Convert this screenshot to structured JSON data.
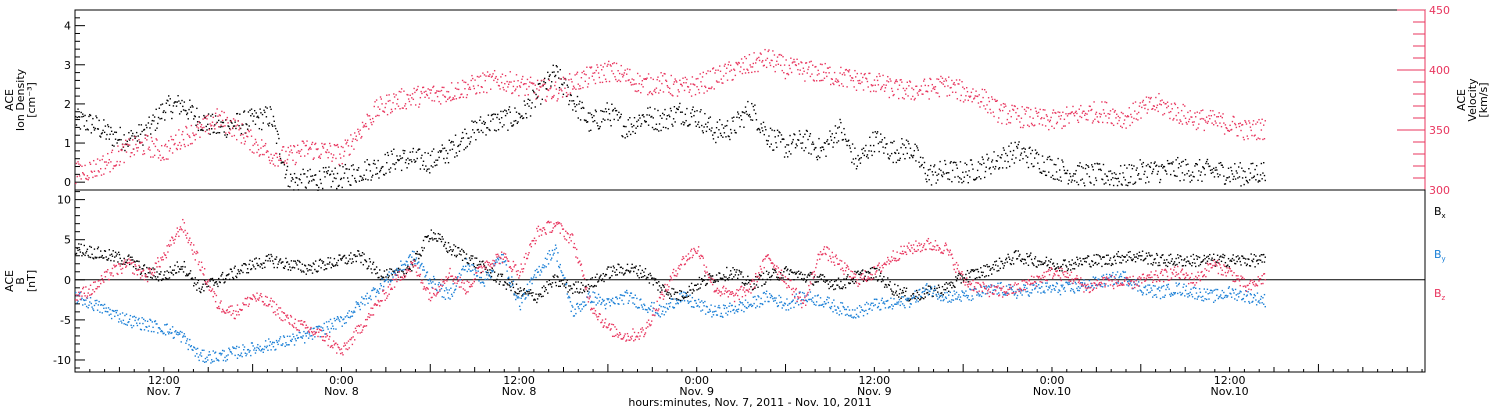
{
  "chart_data": [
    {
      "type": "scatter",
      "panel": "top",
      "ylabel_left": [
        "ACE",
        "Ion Density",
        "[cm⁻³]"
      ],
      "ylabel_right": [
        "ACE",
        "Velocity",
        "[km/s]"
      ],
      "ylim_left": [
        -0.2,
        4.4
      ],
      "ylim_right": [
        300,
        450
      ],
      "yticks_left": [
        "0",
        "1",
        "2",
        "3",
        "4"
      ],
      "yticks_right": [
        "300",
        "350",
        "400",
        "450"
      ],
      "grid": false,
      "colors": {
        "density": "#000000",
        "velocity": "#e8355e"
      },
      "series": [
        {
          "name": "",
          "axis": "left",
          "color": "#000000",
          "x": [
            7.0,
            7.05,
            7.1,
            7.15,
            7.2,
            7.25,
            7.3,
            7.35,
            7.4,
            7.45,
            7.5,
            7.55,
            7.6,
            7.65,
            7.7,
            7.75,
            7.8,
            7.85,
            7.9,
            7.95,
            8.0,
            8.05,
            8.1,
            8.15,
            8.2,
            8.25,
            8.3,
            8.35,
            8.4,
            8.45,
            8.5,
            8.55,
            8.6,
            8.65,
            8.7,
            8.75,
            8.8,
            8.85,
            8.9,
            8.95,
            9.0,
            9.05,
            9.1,
            9.15,
            9.2,
            9.25,
            9.3,
            9.35,
            9.4,
            9.45,
            9.5,
            9.55,
            9.6,
            9.65,
            9.7,
            9.75,
            9.8,
            9.85,
            9.9,
            9.95,
            10.0,
            10.05,
            10.1,
            10.15,
            10.2,
            10.25,
            10.3,
            10.35
          ],
          "values": [
            1.6,
            1.5,
            1.2,
            1.1,
            1.3,
            1.9,
            2.0,
            1.6,
            1.4,
            1.5,
            1.6,
            1.7,
            0.05,
            0.05,
            0.1,
            0.15,
            0.3,
            0.4,
            0.6,
            0.6,
            0.55,
            0.8,
            1.2,
            1.5,
            1.6,
            1.7,
            2.2,
            2.8,
            2.1,
            1.5,
            1.8,
            1.4,
            1.7,
            1.6,
            1.8,
            1.7,
            1.3,
            1.4,
            1.9,
            1.2,
            0.9,
            1.1,
            0.8,
            1.4,
            0.5,
            1.1,
            0.8,
            0.9,
            0.2,
            0.3,
            0.25,
            0.4,
            0.6,
            0.8,
            0.6,
            0.4,
            0.25,
            0.2,
            0.2,
            0.15,
            0.3,
            0.3,
            0.35,
            0.3,
            0.3,
            0.25,
            0.2,
            0.3
          ]
        },
        {
          "name": "",
          "axis": "right",
          "color": "#e8355e",
          "x": [
            7.0,
            7.05,
            7.1,
            7.15,
            7.2,
            7.25,
            7.3,
            7.35,
            7.4,
            7.45,
            7.5,
            7.55,
            7.6,
            7.65,
            7.7,
            7.75,
            7.8,
            7.85,
            7.9,
            7.95,
            8.0,
            8.05,
            8.1,
            8.15,
            8.2,
            8.25,
            8.3,
            8.35,
            8.4,
            8.45,
            8.5,
            8.55,
            8.6,
            8.65,
            8.7,
            8.75,
            8.8,
            8.85,
            8.9,
            8.95,
            9.0,
            9.05,
            9.1,
            9.15,
            9.2,
            9.25,
            9.3,
            9.35,
            9.4,
            9.45,
            9.5,
            9.55,
            9.6,
            9.65,
            9.7,
            9.75,
            9.8,
            9.85,
            9.9,
            9.95,
            10.0,
            10.05,
            10.1,
            10.15,
            10.2,
            10.25,
            10.3,
            10.35
          ],
          "values": [
            315,
            318,
            325,
            335,
            338,
            332,
            345,
            350,
            360,
            352,
            340,
            330,
            328,
            335,
            333,
            330,
            350,
            368,
            375,
            378,
            380,
            382,
            386,
            390,
            392,
            388,
            384,
            383,
            390,
            395,
            400,
            395,
            388,
            390,
            385,
            388,
            394,
            400,
            405,
            410,
            402,
            400,
            398,
            395,
            392,
            390,
            385,
            383,
            385,
            388,
            382,
            378,
            365,
            362,
            360,
            358,
            362,
            365,
            366,
            360,
            368,
            372,
            365,
            360,
            358,
            355,
            350,
            352
          ]
        }
      ]
    },
    {
      "type": "scatter",
      "panel": "bottom",
      "ylabel_left": [
        "ACE",
        "B",
        "[nT]"
      ],
      "ylim": [
        -11.5,
        11.2
      ],
      "yticks": [
        "-10",
        "-5",
        "0",
        "5",
        "10"
      ],
      "grid": false,
      "legend": [
        "Bx",
        "By",
        "Bz"
      ],
      "legend_position": "right",
      "colors": {
        "Bx": "#000000",
        "By": "#1a7fd6",
        "Bz": "#e8355e"
      },
      "series": [
        {
          "name": "Bx",
          "color": "#000000",
          "x": [
            7.0,
            7.05,
            7.1,
            7.15,
            7.2,
            7.25,
            7.3,
            7.35,
            7.4,
            7.45,
            7.5,
            7.55,
            7.6,
            7.65,
            7.7,
            7.75,
            7.8,
            7.85,
            7.9,
            7.95,
            8.0,
            8.05,
            8.1,
            8.15,
            8.2,
            8.25,
            8.3,
            8.35,
            8.4,
            8.45,
            8.5,
            8.55,
            8.6,
            8.65,
            8.7,
            8.75,
            8.8,
            8.85,
            8.9,
            8.95,
            9.0,
            9.05,
            9.1,
            9.15,
            9.2,
            9.25,
            9.3,
            9.35,
            9.4,
            9.45,
            9.5,
            9.55,
            9.6,
            9.65,
            9.7,
            9.75,
            9.8,
            9.85,
            9.9,
            9.95,
            10.0,
            10.05,
            10.1,
            10.15,
            10.2,
            10.25,
            10.3,
            10.35
          ],
          "values": [
            4.0,
            3.5,
            3.0,
            2.5,
            1.0,
            0.5,
            2.0,
            -1.0,
            0.0,
            1.0,
            2.0,
            2.5,
            2.0,
            1.5,
            2.0,
            2.5,
            3.0,
            1.0,
            0.5,
            2.0,
            6.0,
            4.0,
            3.0,
            1.5,
            0.0,
            -1.5,
            -2.0,
            0.0,
            -1.0,
            -0.5,
            1.0,
            1.5,
            1.0,
            -1.0,
            -2.0,
            -0.5,
            0.5,
            1.0,
            -0.5,
            0.5,
            1.0,
            0.5,
            0.0,
            -0.5,
            0.5,
            1.0,
            -1.0,
            -2.0,
            -1.5,
            -1.0,
            0.5,
            1.0,
            2.0,
            3.0,
            2.5,
            2.0,
            2.0,
            2.5,
            2.5,
            3.0,
            3.0,
            2.5,
            2.5,
            2.5,
            2.5,
            2.5,
            2.5,
            2.5
          ]
        },
        {
          "name": "By",
          "color": "#1a7fd6",
          "x": [
            7.0,
            7.05,
            7.1,
            7.15,
            7.2,
            7.25,
            7.3,
            7.35,
            7.4,
            7.45,
            7.5,
            7.55,
            7.6,
            7.65,
            7.7,
            7.75,
            7.8,
            7.85,
            7.9,
            7.95,
            8.0,
            8.05,
            8.1,
            8.15,
            8.2,
            8.25,
            8.3,
            8.35,
            8.4,
            8.45,
            8.5,
            8.55,
            8.6,
            8.65,
            8.7,
            8.75,
            8.8,
            8.85,
            8.9,
            8.95,
            9.0,
            9.05,
            9.1,
            9.15,
            9.2,
            9.25,
            9.3,
            9.35,
            9.4,
            9.45,
            9.5,
            9.55,
            9.6,
            9.65,
            9.7,
            9.75,
            9.8,
            9.85,
            9.9,
            9.95,
            10.0,
            10.05,
            10.1,
            10.15,
            10.2,
            10.25,
            10.3,
            10.35
          ],
          "values": [
            -2.0,
            -3.0,
            -4.0,
            -5.0,
            -5.5,
            -6.0,
            -7.0,
            -9.5,
            -9.5,
            -9.0,
            -8.5,
            -8.0,
            -7.5,
            -7.0,
            -6.0,
            -5.0,
            -3.0,
            -1.0,
            1.0,
            3.0,
            0.0,
            -2.0,
            2.0,
            0.0,
            3.0,
            -3.0,
            1.0,
            4.0,
            -4.0,
            -2.0,
            -3.0,
            -2.0,
            -3.0,
            -4.0,
            -2.0,
            -3.0,
            -4.0,
            -3.5,
            -3.0,
            -2.0,
            -3.0,
            -2.0,
            -2.5,
            -3.5,
            -4.0,
            -3.0,
            -3.0,
            -2.5,
            -1.0,
            -2.0,
            -2.0,
            -1.5,
            -1.0,
            -1.5,
            -1.0,
            -1.0,
            -1.0,
            -0.5,
            0.0,
            0.5,
            -1.0,
            -1.5,
            -1.0,
            -1.5,
            -2.0,
            -1.5,
            -2.0,
            -2.5
          ]
        },
        {
          "name": "Bz",
          "color": "#e8355e",
          "x": [
            7.0,
            7.05,
            7.1,
            7.15,
            7.2,
            7.25,
            7.3,
            7.35,
            7.4,
            7.45,
            7.5,
            7.55,
            7.6,
            7.65,
            7.7,
            7.75,
            7.8,
            7.85,
            7.9,
            7.95,
            8.0,
            8.05,
            8.1,
            8.15,
            8.2,
            8.25,
            8.3,
            8.35,
            8.4,
            8.45,
            8.5,
            8.55,
            8.6,
            8.65,
            8.7,
            8.75,
            8.8,
            8.85,
            8.9,
            8.95,
            9.0,
            9.05,
            9.1,
            9.15,
            9.2,
            9.25,
            9.3,
            9.35,
            9.4,
            9.45,
            9.5,
            9.55,
            9.6,
            9.65,
            9.7,
            9.75,
            9.8,
            9.85,
            9.9,
            9.95,
            10.0,
            10.05,
            10.1,
            10.15,
            10.2,
            10.25,
            10.3,
            10.35
          ],
          "values": [
            -2.0,
            -1.0,
            1.0,
            2.0,
            0.5,
            3.0,
            7.0,
            2.0,
            -3.0,
            -4.0,
            -2.0,
            -3.0,
            -5.0,
            -6.0,
            -7.0,
            -9.0,
            -6.0,
            -3.0,
            0.0,
            2.0,
            -2.0,
            1.0,
            -1.0,
            2.0,
            3.0,
            1.0,
            6.0,
            7.0,
            5.0,
            -3.0,
            -6.0,
            -7.0,
            -6.5,
            -2.0,
            2.0,
            4.0,
            -1.0,
            -2.0,
            -1.0,
            3.0,
            0.0,
            -3.0,
            4.0,
            2.0,
            0.0,
            1.0,
            3.0,
            4.0,
            4.5,
            4.0,
            0.0,
            -1.0,
            -1.5,
            -1.0,
            0.0,
            1.0,
            0.5,
            -1.0,
            0.0,
            -0.5,
            0.0,
            0.5,
            1.0,
            0.0,
            2.0,
            1.0,
            -1.0,
            0.5
          ]
        }
      ]
    }
  ],
  "x_axis": {
    "xlim": [
      7.0,
      10.8
    ],
    "ticks": [
      {
        "x": 7.25,
        "time": "12:00",
        "date": "Nov. 7"
      },
      {
        "x": 7.75,
        "time": "0:00",
        "date": "Nov. 8"
      },
      {
        "x": 8.25,
        "time": "12:00",
        "date": "Nov. 8"
      },
      {
        "x": 8.75,
        "time": "0:00",
        "date": "Nov. 9"
      },
      {
        "x": 9.25,
        "time": "12:00",
        "date": "Nov. 9"
      },
      {
        "x": 9.75,
        "time": "0:00",
        "date": "Nov.10"
      },
      {
        "x": 10.25,
        "time": "12:00",
        "date": "Nov.10"
      }
    ],
    "xlabel": "hours:minutes, Nov.  7, 2011 - Nov. 10, 2011"
  }
}
